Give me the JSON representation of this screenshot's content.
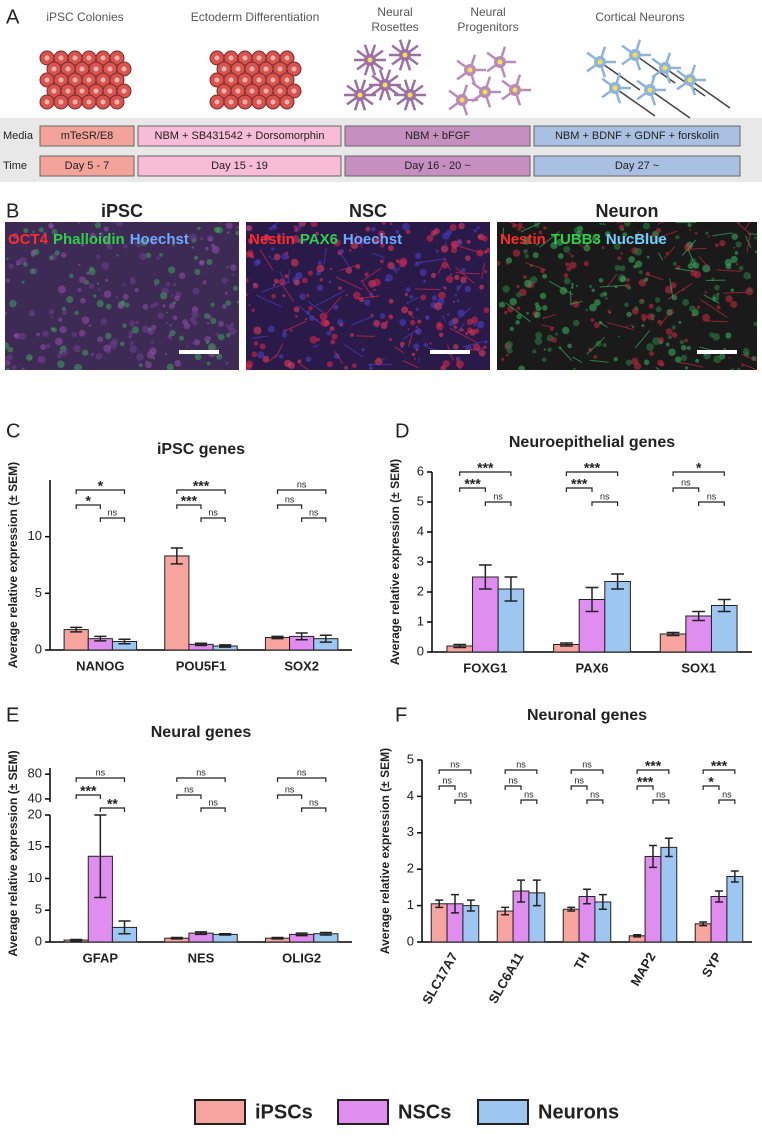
{
  "panels": [
    "A",
    "B",
    "C",
    "D",
    "E",
    "F"
  ],
  "diagram": {
    "stages": [
      [
        "iPSC Colonies"
      ],
      [
        "Ectoderm Differentiation"
      ],
      [
        "Neural",
        "Rosettes"
      ],
      [
        "Neural",
        "Progenitors"
      ],
      [
        "Cortical Neurons"
      ]
    ],
    "rows": [
      {
        "label": "Media",
        "cells": [
          "mTeSR/E8",
          "NBM + SB431542 + Dorsomorphin",
          "NBM + bFGF",
          "NBM + BDNF + GDNF + forskolin"
        ]
      },
      {
        "label": "Time",
        "cells": [
          "Day 5 - 7",
          "Day 15 - 19",
          "Day 16 - 20 ~",
          "Day 27 ~"
        ]
      }
    ],
    "cell_colors": [
      "#f4a39b",
      "#f8bcd6",
      "#c58fc0",
      "#a9c0e2"
    ]
  },
  "images": [
    {
      "title": "iPSC",
      "stains": [
        {
          "text": "OCT4",
          "color": "#ff2b2b"
        },
        {
          "text": "Phalloidin",
          "color": "#2fcf4a"
        },
        {
          "text": "Hoechst",
          "color": "#6fa8ff"
        }
      ]
    },
    {
      "title": "NSC",
      "stains": [
        {
          "text": "Nestin",
          "color": "#ff2b2b"
        },
        {
          "text": "PAX6",
          "color": "#2fcf4a"
        },
        {
          "text": "Hoechst",
          "color": "#6fa8ff"
        }
      ]
    },
    {
      "title": "Neuron",
      "stains": [
        {
          "text": "Nestin",
          "color": "#ff2b2b"
        },
        {
          "text": "TUBB3",
          "color": "#2fcf4a"
        },
        {
          "text": "NucBlue",
          "color": "#6fd0ff"
        }
      ]
    }
  ],
  "legend": [
    {
      "name": "iPSCs",
      "color": "#f6a49d"
    },
    {
      "name": "NSCs",
      "color": "#df8ef0"
    },
    {
      "name": "Neurons",
      "color": "#9dc6f0"
    }
  ],
  "chart_data": [
    {
      "type": "bar",
      "title": "iPSC genes",
      "ylabel": "Average relative expression (± SEM)",
      "categories": [
        "NANOG",
        "POU5F1",
        "SOX2"
      ],
      "series": [
        {
          "values": [
            1.8,
            8.3,
            1.1
          ],
          "errors": [
            0.2,
            0.7,
            0.1
          ]
        },
        {
          "values": [
            1.0,
            0.5,
            1.2
          ],
          "errors": [
            0.2,
            0.1,
            0.3
          ]
        },
        {
          "values": [
            0.75,
            0.35,
            1.0
          ],
          "errors": [
            0.2,
            0.1,
            0.3
          ]
        }
      ],
      "ylim": [
        0,
        15
      ],
      "yticks": [
        0,
        5,
        10
      ],
      "significance": [
        [
          "*",
          "*",
          "ns"
        ],
        [
          "***",
          "***",
          "ns"
        ],
        [
          "ns",
          "ns",
          "ns"
        ]
      ]
    },
    {
      "type": "bar",
      "title": "Neuroepithelial genes",
      "ylabel": "Average relative expression (± SEM)",
      "categories": [
        "FOXG1",
        "PAX6",
        "SOX1"
      ],
      "series": [
        {
          "values": [
            0.2,
            0.25,
            0.6
          ],
          "errors": [
            0.05,
            0.05,
            0.05
          ]
        },
        {
          "values": [
            2.5,
            1.75,
            1.2
          ],
          "errors": [
            0.4,
            0.4,
            0.15
          ]
        },
        {
          "values": [
            2.1,
            2.35,
            1.55
          ],
          "errors": [
            0.4,
            0.25,
            0.2
          ]
        }
      ],
      "ylim": [
        0,
        6
      ],
      "yticks": [
        0,
        1,
        2,
        3,
        4,
        5,
        6
      ],
      "significance": [
        [
          "***",
          "***",
          "ns"
        ],
        [
          "***",
          "***",
          "ns"
        ],
        [
          "ns",
          "*",
          "ns"
        ]
      ]
    },
    {
      "type": "bar",
      "title": "Neural genes",
      "ylabel": "Average relative expression (± SEM)",
      "categories": [
        "GFAP",
        "NES",
        "OLIG2"
      ],
      "series": [
        {
          "values": [
            0.3,
            0.6,
            0.6
          ],
          "errors": [
            0.1,
            0.1,
            0.1
          ]
        },
        {
          "values": [
            13.5,
            1.4,
            1.2
          ],
          "errors": [
            6.5,
            0.2,
            0.2
          ]
        },
        {
          "values": [
            2.3,
            1.2,
            1.3
          ],
          "errors": [
            1.0,
            0.1,
            0.2
          ]
        }
      ],
      "ylim": [
        0,
        20
      ],
      "yticks": [
        0,
        5,
        10,
        15,
        20
      ],
      "break_ylim": [
        35,
        90
      ],
      "break_yticks": [
        40,
        80
      ],
      "significance": [
        [
          "***",
          "ns",
          "**"
        ],
        [
          "ns",
          "ns",
          "ns"
        ],
        [
          "ns",
          "ns",
          "ns"
        ]
      ]
    },
    {
      "type": "bar",
      "title": "Neuronal genes",
      "ylabel": "Average relative expression (± SEM)",
      "categories": [
        "SLC17A7",
        "SLC6A11",
        "TH",
        "MAP2",
        "SYP"
      ],
      "series": [
        {
          "values": [
            1.05,
            0.85,
            0.9,
            0.17,
            0.5
          ],
          "errors": [
            0.1,
            0.1,
            0.05,
            0.03,
            0.05
          ]
        },
        {
          "values": [
            1.05,
            1.4,
            1.25,
            2.35,
            1.25
          ],
          "errors": [
            0.25,
            0.3,
            0.2,
            0.3,
            0.15
          ]
        },
        {
          "values": [
            1.0,
            1.35,
            1.1,
            2.6,
            1.8
          ],
          "errors": [
            0.15,
            0.35,
            0.2,
            0.25,
            0.15
          ]
        }
      ],
      "ylim": [
        0,
        5
      ],
      "yticks": [
        0,
        1,
        2,
        3,
        4,
        5
      ],
      "significance": [
        [
          "ns",
          "ns",
          "ns"
        ],
        [
          "ns",
          "ns",
          "ns"
        ],
        [
          "ns",
          "ns",
          "ns"
        ],
        [
          "***",
          "***",
          "ns"
        ],
        [
          "*",
          "***",
          "ns"
        ]
      ]
    }
  ]
}
